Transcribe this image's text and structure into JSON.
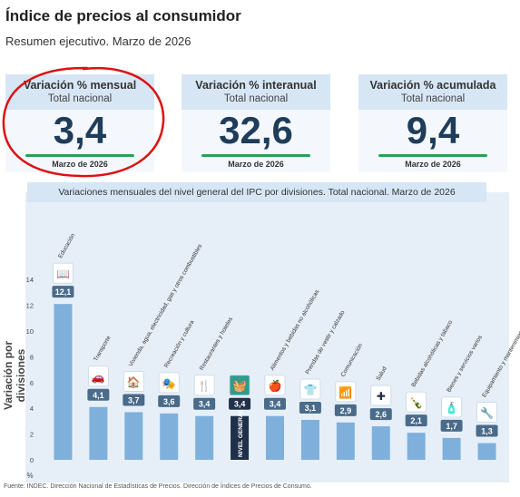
{
  "header": {
    "title": "Índice de precios al consumidor",
    "subtitle": "Resumen ejecutivo. Marzo de 2026"
  },
  "cards": [
    {
      "title": "Variación % mensual",
      "sub": "Total nacional",
      "value": "3,4",
      "date": "Marzo de 2026"
    },
    {
      "title": "Variación % interanual",
      "sub": "Total nacional",
      "value": "32,6",
      "date": "Marzo de 2026"
    },
    {
      "title": "Variación % acumulada",
      "sub": "Total nacional",
      "value": "9,4",
      "date": "Marzo de 2026"
    }
  ],
  "colors": {
    "bar": "#7fb0dc",
    "highlight_bar": "#1f3048",
    "accent_line": "#2aa055",
    "annotation": "#dd1111"
  },
  "chart_data": {
    "type": "bar",
    "title": "Variaciones mensuales del nivel general del IPC por divisiones. Total nacional. Marzo de 2026",
    "ylabel": "Variación por divisiones",
    "yunit": "%",
    "ylim": [
      0,
      14
    ],
    "yticks": [
      0,
      2,
      4,
      6,
      8,
      10,
      12,
      14
    ],
    "grid": false,
    "categories": [
      "Educación",
      "Transporte",
      "Vivienda, agua, electricidad, gas y otros combustibles",
      "Recreación y cultura",
      "Restaurantes y hoteles",
      "NIVEL GENERAL",
      "Alimentos y bebidas no alcohólicas",
      "Prendas de vestir y calzado",
      "Comunicación",
      "Salud",
      "Bebidas alcohólicas y tabaco",
      "Bienes y servicios varios",
      "Equipamiento y mantenimiento del hogar"
    ],
    "values": [
      12.1,
      4.1,
      3.7,
      3.6,
      3.4,
      3.4,
      3.4,
      3.1,
      2.9,
      2.6,
      2.1,
      1.7,
      1.3
    ],
    "value_labels": [
      "12,1",
      "4,1",
      "3,7",
      "3,6",
      "3,4",
      "3,4",
      "3,4",
      "3,1",
      "2,9",
      "2,6",
      "2,1",
      "1,7",
      "1,3"
    ],
    "icons": [
      "book-icon",
      "car-icon",
      "house-icon",
      "theater-icon",
      "fork-knife-icon",
      "basket-icon",
      "fruit-icon",
      "shirt-icon",
      "wifi-icon",
      "plus-icon",
      "bottle-icon",
      "perfume-icon",
      "tools-icon"
    ],
    "highlight_index": 5
  },
  "source": "Fuente: INDEC. Dirección Nacional de Estadísticas de Precios. Dirección de Índices de Precios de Consumo."
}
